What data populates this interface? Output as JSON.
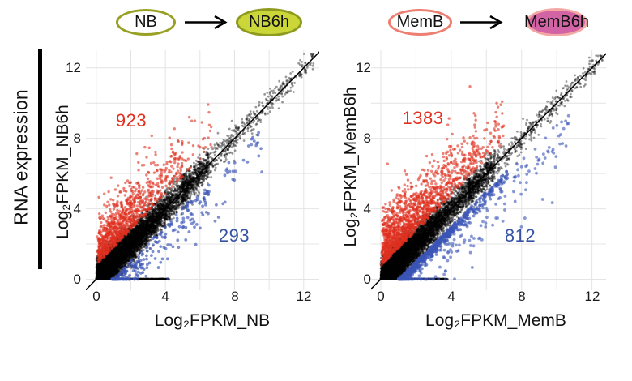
{
  "figure": {
    "row_label": "RNA expression",
    "background": "#ffffff"
  },
  "headers": {
    "left": {
      "source": {
        "label": "NB",
        "fill": "#ffffff",
        "border": "#98a123"
      },
      "result": {
        "label": "NB6h",
        "fill": "#cbd739",
        "border": "#8f9b1e"
      }
    },
    "right": {
      "source": {
        "label": "MemB",
        "fill": "#ffffff",
        "border": "#ec7e72"
      },
      "result": {
        "label": "MemB6h",
        "fill": "#d263a4",
        "border": "#f3a8a4"
      }
    }
  },
  "chart_data": [
    {
      "type": "scatter",
      "title": "NB vs NB6h",
      "xlabel": "Log₂FPKM_NB",
      "ylabel": "Log₂FPKM_NB6h",
      "xlim": [
        -0.6,
        12.9
      ],
      "ylim": [
        -0.62,
        13.0
      ],
      "xticks": [
        "0",
        "4",
        "8",
        "12"
      ],
      "yticks": [
        "0",
        "4",
        "8",
        "12"
      ],
      "xtick_values": [
        0,
        4,
        8,
        12
      ],
      "ytick_values": [
        0,
        4,
        8,
        12
      ],
      "gridline_values": [
        0,
        2,
        4,
        6,
        8,
        10,
        12
      ],
      "grid_color": "#e4e4e4",
      "grid_on": true,
      "legend": "none",
      "identity_line": {
        "show": true,
        "color": "#000000",
        "width": 1.5
      },
      "annotations": [
        {
          "text": "923",
          "x": 1.9,
          "y": 9.0,
          "color": "#e0301f"
        },
        {
          "text": "293",
          "x": 8.0,
          "y": 2.4,
          "color": "#3552a5"
        }
      ],
      "series": [
        {
          "name": "unchanged",
          "color": "#000000",
          "alpha": 0.4,
          "r": 1.4,
          "n": 10000,
          "seed": 11,
          "gen": {
            "floor": {
              "frac": 0.06,
              "xmax": 4.2,
              "pow": 1.7
            },
            "x_mix": [
              {
                "w": 0.62,
                "kind": "halfnorm",
                "shift": 0.05,
                "scale": 2.0
              },
              {
                "w": 0.18,
                "kind": "uniform",
                "a": 0,
                "b": 6.5
              },
              {
                "w": 0.13,
                "kind": "uniform",
                "a": 0,
                "b": 1.3
              },
              {
                "w": 0.07,
                "kind": "tail",
                "a": 5,
                "b": 12.6
              }
            ],
            "base": 0,
            "sd0": 0.55,
            "slope": -0.02,
            "sdMin": 0.16,
            "absolute": false,
            "clampY0": true,
            "ymax": 12.8
          }
        },
        {
          "name": "up_in_NB6h",
          "color": "#e0301f",
          "alpha": 0.6,
          "r": 1.7,
          "n": 923,
          "seed": 22,
          "gen": {
            "x_mix": [
              {
                "w": 0.7,
                "kind": "halfnorm",
                "shift": 0.1,
                "scale": 1.6
              },
              {
                "w": 0.25,
                "kind": "uniform",
                "a": 0,
                "b": 5
              },
              {
                "w": 0.05,
                "kind": "uniform",
                "a": 4,
                "b": 6.8
              }
            ],
            "base": 0.8,
            "sd0": 1.25,
            "absolute": true,
            "dir": 1,
            "clampY0": true,
            "ymax": 12.6
          }
        },
        {
          "name": "down_in_NB6h",
          "color": "#3a55b7",
          "alpha": 0.65,
          "r": 1.9,
          "n": 293,
          "seed": 33,
          "gen": {
            "x_mix": [
              {
                "w": 0.5,
                "kind": "halfnorm",
                "shift": 0.9,
                "scale": 2.2
              },
              {
                "w": 0.3,
                "kind": "uniform",
                "a": 0.9,
                "b": 6.5
              },
              {
                "w": 0.2,
                "kind": "uniform",
                "a": 4,
                "b": 9.6
              }
            ],
            "base": 0.95,
            "sd0": 1.15,
            "absolute": true,
            "dir": -1,
            "clampY0": true,
            "ymax": 12.6
          }
        }
      ]
    },
    {
      "type": "scatter",
      "title": "MemB vs MemB6h",
      "xlabel": "Log₂FPKM_MemB",
      "ylabel": "Log₂FPKM_MemB6h",
      "xlim": [
        -0.55,
        12.8
      ],
      "ylim": [
        -0.62,
        13.0
      ],
      "xticks": [
        "0",
        "4",
        "8",
        "12"
      ],
      "yticks": [
        "0",
        "4",
        "8",
        "12"
      ],
      "xtick_values": [
        0,
        4,
        8,
        12
      ],
      "ytick_values": [
        0,
        4,
        8,
        12
      ],
      "gridline_values": [
        0,
        2,
        4,
        6,
        8,
        10,
        12
      ],
      "grid_color": "#e4e4e4",
      "grid_on": true,
      "legend": "none",
      "identity_line": {
        "show": true,
        "color": "#000000",
        "width": 1.5
      },
      "annotations": [
        {
          "text": "1383",
          "x": 2.4,
          "y": 9.1,
          "color": "#e0301f"
        },
        {
          "text": "812",
          "x": 7.9,
          "y": 2.5,
          "color": "#3552a5"
        }
      ],
      "series": [
        {
          "name": "unchanged",
          "color": "#000000",
          "alpha": 0.4,
          "r": 1.4,
          "n": 10500,
          "seed": 44,
          "gen": {
            "floor": {
              "frac": 0.06,
              "xmax": 3.8,
              "pow": 1.7
            },
            "x_mix": [
              {
                "w": 0.55,
                "kind": "halfnorm",
                "shift": 0.05,
                "scale": 1.9
              },
              {
                "w": 0.18,
                "kind": "uniform",
                "a": 0,
                "b": 6.5
              },
              {
                "w": 0.2,
                "kind": "uniform",
                "a": 0,
                "b": 1.4
              },
              {
                "w": 0.07,
                "kind": "tail",
                "a": 5,
                "b": 12.6
              }
            ],
            "base": 0,
            "sd0": 0.52,
            "slope": -0.018,
            "sdMin": 0.16,
            "absolute": false,
            "clampY0": true,
            "ymax": 12.8
          }
        },
        {
          "name": "up_in_MemB6h",
          "color": "#e0301f",
          "alpha": 0.6,
          "r": 1.7,
          "n": 1383,
          "seed": 55,
          "gen": {
            "x_mix": [
              {
                "w": 0.7,
                "kind": "halfnorm",
                "shift": 0.1,
                "scale": 1.7
              },
              {
                "w": 0.25,
                "kind": "uniform",
                "a": 0,
                "b": 5.5
              },
              {
                "w": 0.05,
                "kind": "uniform",
                "a": 4.5,
                "b": 7
              }
            ],
            "base": 0.75,
            "sd0": 1.3,
            "absolute": true,
            "dir": 1,
            "clampY0": true,
            "ymax": 12.6
          }
        },
        {
          "name": "down_in_MemB6h_band",
          "color": "#3a55b7",
          "alpha": 0.65,
          "r": 1.9,
          "n": 610,
          "seed": 66,
          "gen": {
            "x_mix": [
              {
                "w": 0.75,
                "kind": "halfnorm",
                "shift": 1.0,
                "scale": 2.1
              },
              {
                "w": 0.25,
                "kind": "uniform",
                "a": 1,
                "b": 7.2
              }
            ],
            "xmax": 7.5,
            "base": 1.0,
            "sd0": 0.3,
            "absolute": true,
            "dir": -1,
            "clampY0": true,
            "ymax": 12.6
          }
        },
        {
          "name": "down_in_MemB6h_spread",
          "color": "#3a55b7",
          "alpha": 0.6,
          "r": 1.9,
          "n": 202,
          "seed": 77,
          "gen": {
            "x_mix": [
              {
                "w": 1,
                "kind": "uniform",
                "a": 1,
                "b": 10.7
              }
            ],
            "base": 1.1,
            "sd0": 1.5,
            "absolute": true,
            "dir": -1,
            "clampY0": true,
            "ymax": 12.6
          }
        }
      ]
    }
  ]
}
